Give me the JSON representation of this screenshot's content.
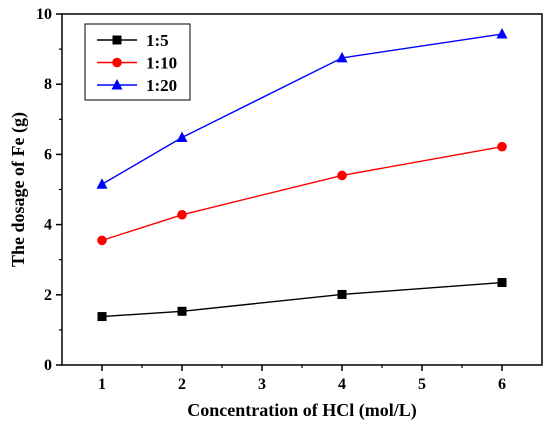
{
  "chart_data": {
    "type": "line",
    "title": "",
    "xlabel": "Concentration of HCl (mol/L)",
    "ylabel": "The dosage of Fe (g)",
    "xlim": [
      0.5,
      6.5
    ],
    "ylim": [
      0,
      10
    ],
    "x_ticks": [
      "1",
      "2",
      "3",
      "4",
      "5",
      "6"
    ],
    "y_ticks": [
      "0",
      "2",
      "4",
      "6",
      "8",
      "10"
    ],
    "grid": false,
    "legend_position": "top-left",
    "series": [
      {
        "name": "1:5",
        "color": "#000000",
        "marker": "square",
        "x": [
          1,
          2,
          4,
          6
        ],
        "y": [
          1.38,
          1.53,
          2.01,
          2.35
        ]
      },
      {
        "name": "1:10",
        "color": "#ff0000",
        "marker": "circle",
        "x": [
          1,
          2,
          4,
          6
        ],
        "y": [
          3.55,
          4.28,
          5.4,
          6.22
        ]
      },
      {
        "name": "1:20",
        "color": "#0000ff",
        "marker": "triangle",
        "x": [
          1,
          2,
          4,
          6
        ],
        "y": [
          5.15,
          6.48,
          8.75,
          9.43
        ]
      }
    ]
  }
}
